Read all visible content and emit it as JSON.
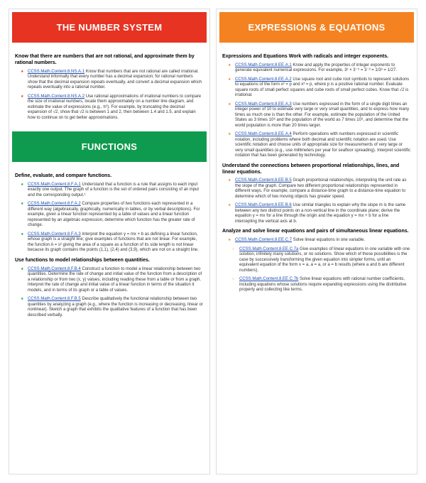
{
  "leftTop": {
    "title": "THE NUMBER SYSTEM",
    "color": "red",
    "groups": [
      {
        "heading": "Know that there are numbers that are not rational, and approximate them by rational numbers.",
        "items": [
          {
            "code": "CCSS.Math.Content.8.NS.A.1",
            "text": "Know that numbers that are not rational are called irrational. Understand informally that every number has a decimal expansion; for rational numbers show that the decimal expansion repeats eventually, and convert a decimal expansion which repeats eventually into a rational number."
          },
          {
            "code": "CCSS.Math.Content.8.NS.A.2",
            "text": "Use rational approximations of irrational numbers to compare the size of irrational numbers, locate them approximately on a number line diagram, and estimate the value of expressions (e.g., π²). For example, by truncating the decimal expansion of √2, show that √2 is between 1 and 2, then between 1.4 and 1.5, and explain how to continue on to get better approximations."
          }
        ]
      }
    ]
  },
  "leftBottom": {
    "title": "FUNCTIONS",
    "color": "green",
    "groups": [
      {
        "heading": "Define, evaluate, and compare functions.",
        "items": [
          {
            "code": "CCSS.Math.Content.8.F.A.1",
            "text": "Understand that a function is a rule that assigns to each input exactly one output. The graph of a function is the set of ordered pairs consisting of an input and the corresponding output.¹"
          },
          {
            "code": "CCSS.Math.Content.8.F.A.2",
            "text": "Compare properties of two functions each represented in a different way (algebraically, graphically, numerically in tables, or by verbal descriptions). For example, given a linear function represented by a table of values and a linear function represented by an algebraic expression, determine which function has the greater rate of change."
          },
          {
            "code": "CCSS.Math.Content.8.F.A.3",
            "text": "Interpret the equation y = mx + b as defining a linear function, whose graph is a straight line; give examples of functions that are not linear. For example, the function A = s² giving the area of a square as a function of its side length is not linear because its graph contains the points (1,1), (2,4) and (3,9), which are not on a straight line."
          }
        ]
      },
      {
        "heading": "Use functions to model relationships between quantities.",
        "items": [
          {
            "code": "CCSS.Math.Content.8.F.B.4",
            "text": "Construct a function to model a linear relationship between two quantities. Determine the rate of change and initial value of the function from a description of a relationship or from two (x, y) values, including reading these from a table or from a graph. Interpret the rate of change and initial value of a linear function in terms of the situation it models, and in terms of its graph or a table of values."
          },
          {
            "code": "CCSS.Math.Content.8.F.B.5",
            "text": "Describe qualitatively the functional relationship between two quantities by analyzing a graph (e.g., where the function is increasing or decreasing, linear or nonlinear). Sketch a graph that exhibits the qualitative features of a function that has been described verbally."
          }
        ]
      }
    ]
  },
  "right": {
    "title": "EXPRESSIONS & EQUATIONS",
    "color": "orange",
    "groups": [
      {
        "heading": "Expressions and Equations Work with radicals and integer exponents.",
        "items": [
          {
            "code": "CCSS.Math.Content.8.EE.A.1",
            "text": "Know and apply the properties of integer exponents to generate equivalent numerical expressions. For example, 3² × 3⁻⁵ = 3⁻³ = 1/3³ = 1/27."
          },
          {
            "code": "CCSS.Math.Content.8.EE.A.2",
            "text": "Use square root and cube root symbols to represent solutions to equations of the form x² = p and x³ = p, where p is a positive rational number. Evaluate square roots of small perfect squares and cube roots of small perfect cubes. Know that √2 is irrational."
          },
          {
            "code": "CCSS.Math.Content.8.EE.A.3",
            "text": "Use numbers expressed in the form of a single digit times an integer power of 10 to estimate very large or very small quantities, and to express how many times as much one is than the other. For example, estimate the population of the United States as 3 times 10⁸ and the population of the world as 7 times 10⁹, and determine that the world population is more than 20 times larger."
          },
          {
            "code": "CCSS.Math.Content.8.EE.A.4",
            "text": "Perform operations with numbers expressed in scientific notation, including problems where both decimal and scientific notation are used. Use scientific notation and choose units of appropriate size for measurements of very large or very small quantities (e.g., use millimeters per year for seafloor spreading). Interpret scientific notation that has been generated by technology."
          }
        ]
      },
      {
        "heading": "Understand the connections between proportional relationships, lines, and linear equations.",
        "items": [
          {
            "code": "CCSS.Math.Content.8.EE.B.5",
            "text": "Graph proportional relationships, interpreting the unit rate as the slope of the graph. Compare two different proportional relationships represented in different ways. For example, compare a distance-time graph to a distance-time equation to determine which of two moving objects has greater speed."
          },
          {
            "code": "CCSS.Math.Content.8.EE.B.6",
            "text": "Use similar triangles to explain why the slope m is the same between any two distinct points on a non-vertical line in the coordinate plane; derive the equation y = mx for a line through the origin and the equation y = mx + b for a line intercepting the vertical axis at b."
          }
        ]
      },
      {
        "heading": "Analyze and solve linear equations and pairs of simultaneous linear equations.",
        "items": [
          {
            "code": "CCSS.Math.Content.8.EE.C.7",
            "text": "Solve linear equations in one variable."
          },
          {
            "code": "CCSS.Math.Content.8.EE.C.7a",
            "text": "Give examples of linear equations in one variable with one solution, infinitely many solutions, or no solutions. Show which of these possibilities is the case by successively transforming the given equation into simpler forms, until an equivalent equation of the form x = a, a = a, or a = b results (where a and b are different numbers).",
            "sub": true
          },
          {
            "code": "CCSS.Math.Content.8.EE.C.7b",
            "text": "Solve linear equations with rational number coefficients, including equations whose solutions require expanding expressions using the distributive property and collecting like terms.",
            "sub": true
          }
        ]
      }
    ]
  }
}
